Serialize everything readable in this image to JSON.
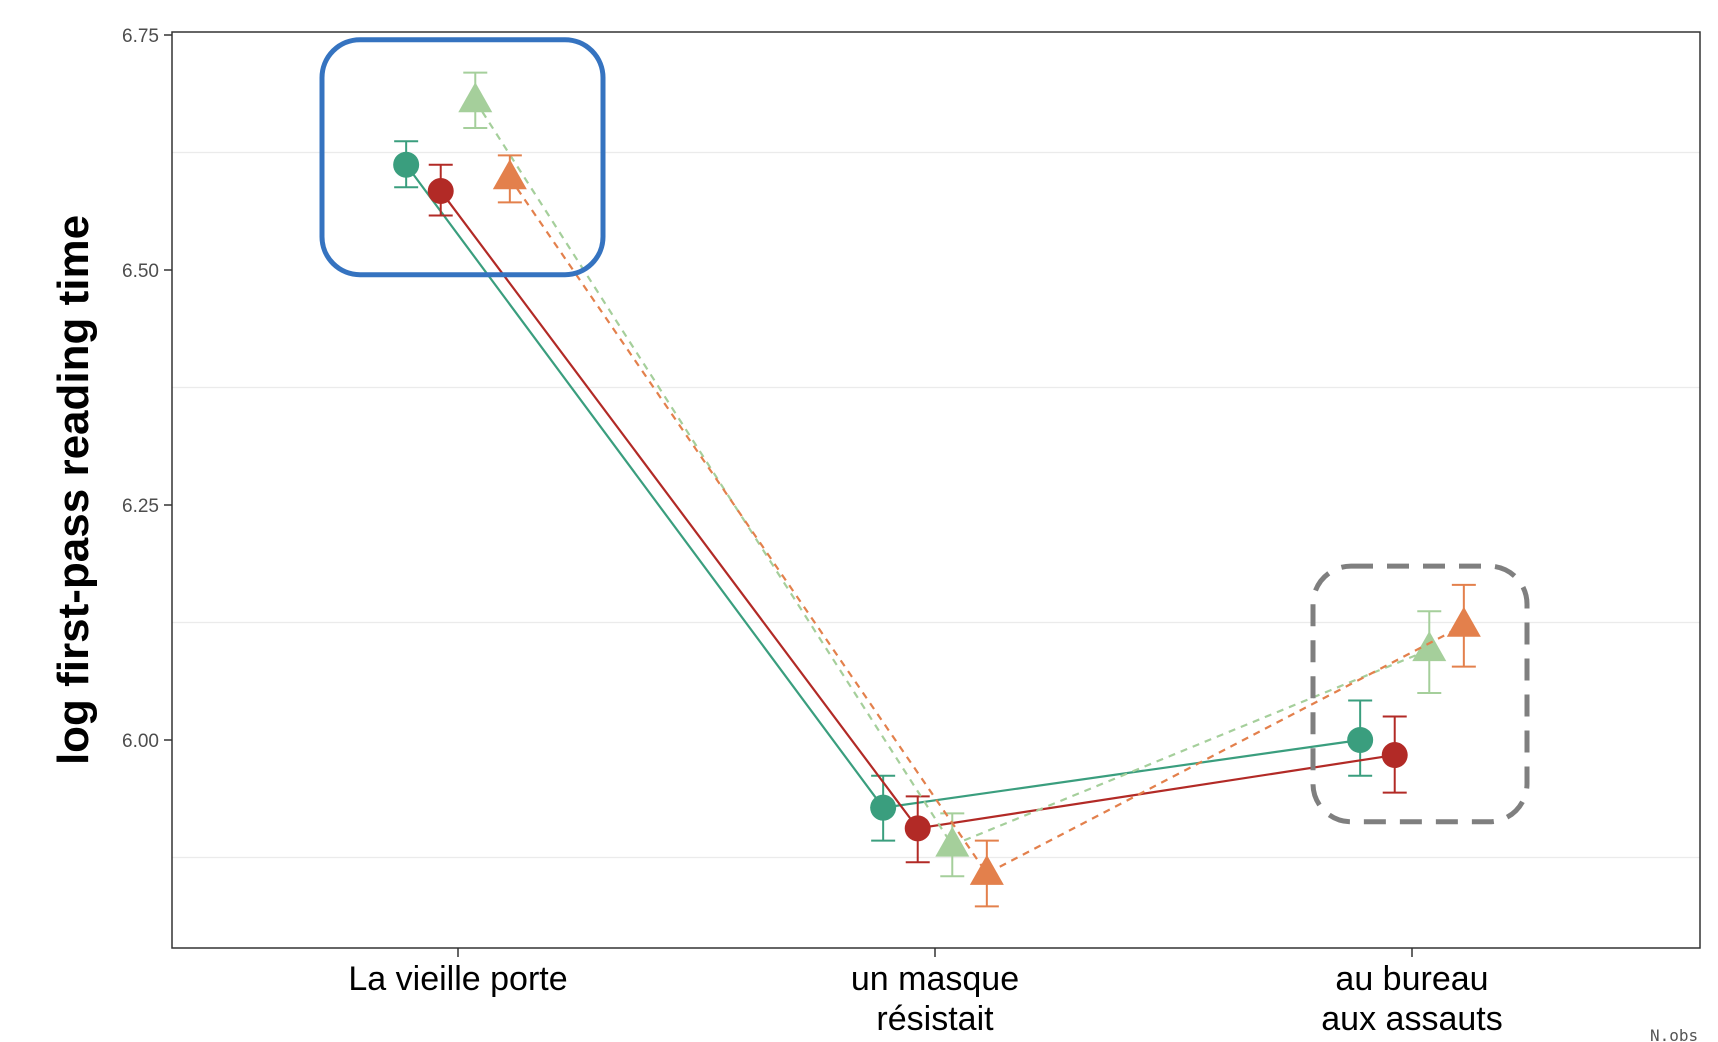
{
  "chart_data": {
    "type": "line",
    "title": "",
    "xlabel": "",
    "ylabel": "log first-pass reading time",
    "categories": [
      [
        "La vieille porte"
      ],
      [
        "un masque",
        "résistait"
      ],
      [
        "au bureau",
        "aux assauts"
      ]
    ],
    "ylim": [
      5.78,
      6.75
    ],
    "yticks": [
      "6.00",
      "6.25",
      "6.50",
      "6.75"
    ],
    "grid": "horizontal minor only",
    "legend": "none",
    "corner_text": "N.obs",
    "series": [
      {
        "marker": "circle",
        "color": "#3a9e7e",
        "line": "solid",
        "offset": -0.36,
        "values": [
          6.612,
          5.928,
          6.0
        ],
        "lower": [
          6.588,
          5.893,
          5.962
        ],
        "upper": [
          6.637,
          5.962,
          6.042
        ]
      },
      {
        "marker": "circle",
        "color": "#b22a26",
        "line": "solid",
        "offset": -0.12,
        "values": [
          6.584,
          5.906,
          5.984
        ],
        "lower": [
          6.558,
          5.87,
          5.944
        ],
        "upper": [
          6.612,
          5.94,
          6.025
        ]
      },
      {
        "marker": "triangle",
        "color": "#a5cf9b",
        "line": "dashed",
        "offset": 0.12,
        "values": [
          6.68,
          5.888,
          6.096
        ],
        "lower": [
          6.651,
          5.855,
          6.05
        ],
        "upper": [
          6.71,
          5.922,
          6.137
        ]
      },
      {
        "marker": "triangle",
        "color": "#e3804c",
        "line": "dashed",
        "offset": 0.36,
        "values": [
          6.598,
          5.858,
          6.122
        ],
        "lower": [
          6.572,
          5.823,
          6.078
        ],
        "upper": [
          6.622,
          5.893,
          6.165
        ]
      }
    ],
    "highlight_boxes": [
      {
        "category_index": 0,
        "y_range": [
          6.495,
          6.745
        ],
        "color": "#3573c0",
        "style": "solid"
      },
      {
        "category_index": 2,
        "y_range": [
          5.913,
          6.185
        ],
        "color": "#7f7f7f",
        "style": "dashed"
      }
    ]
  }
}
